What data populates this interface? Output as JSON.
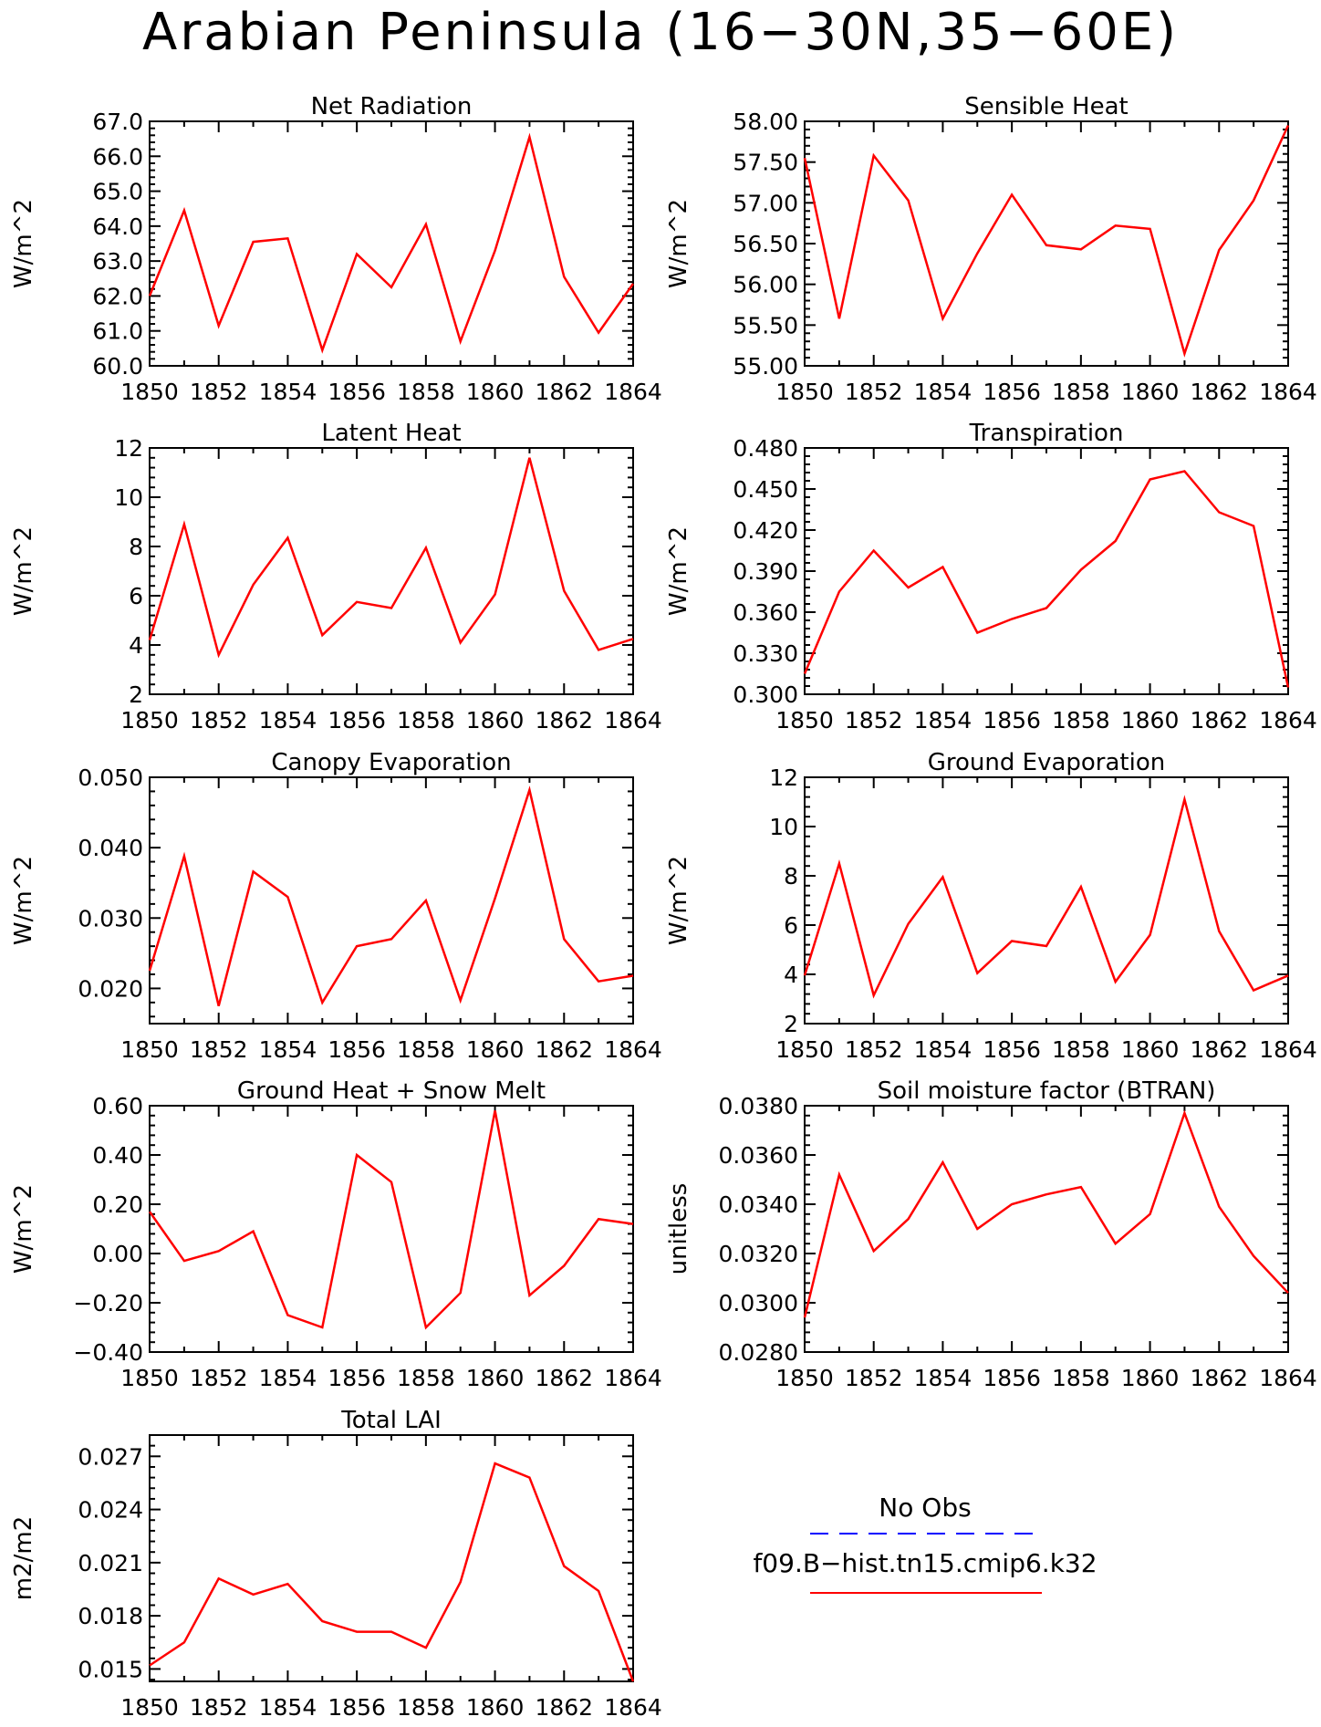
{
  "figure": {
    "title": "Arabian Peninsula (16−30N,35−60E)"
  },
  "colors": {
    "series_red": "#ff0000",
    "obs_blue": "#0000ff",
    "axis": "#000000"
  },
  "legend": {
    "items": [
      {
        "label": "No Obs",
        "color": "#0000ff",
        "style": "dashed"
      },
      {
        "label": "f09.B−hist.tn15.cmip6.k32",
        "color": "#ff0000",
        "style": "solid"
      }
    ]
  },
  "chart_data": [
    {
      "type": "line",
      "title": "Net Radiation",
      "ylabel": "W/m^2",
      "x": [
        1850,
        1851,
        1852,
        1853,
        1854,
        1855,
        1856,
        1857,
        1858,
        1859,
        1860,
        1861,
        1862,
        1863,
        1864
      ],
      "values": [
        62.0,
        64.45,
        61.15,
        63.55,
        63.65,
        60.45,
        63.2,
        62.25,
        64.05,
        60.7,
        63.3,
        66.55,
        62.55,
        60.95,
        62.35
      ],
      "xlim": [
        1850,
        1864
      ],
      "ylim": [
        60.0,
        67.0
      ],
      "xticks": [
        1850,
        1852,
        1854,
        1856,
        1858,
        1860,
        1862,
        1864
      ],
      "xtick_labels": [
        "1850",
        "1852",
        "1854",
        "1856",
        "1858",
        "1860",
        "1862",
        "1864"
      ],
      "yticks": [
        60.0,
        61.0,
        62.0,
        63.0,
        64.0,
        65.0,
        66.0,
        67.0
      ],
      "ytick_labels": [
        "60.0",
        "61.0",
        "62.0",
        "63.0",
        "64.0",
        "65.0",
        "66.0",
        "67.0"
      ],
      "grid": false
    },
    {
      "type": "line",
      "title": "Sensible Heat",
      "ylabel": "W/m^2",
      "x": [
        1850,
        1851,
        1852,
        1853,
        1854,
        1855,
        1856,
        1857,
        1858,
        1859,
        1860,
        1861,
        1862,
        1863,
        1864
      ],
      "values": [
        57.55,
        55.58,
        57.58,
        57.03,
        55.58,
        56.38,
        57.1,
        56.48,
        56.43,
        56.72,
        56.68,
        55.15,
        56.42,
        57.03,
        57.95
      ],
      "xlim": [
        1850,
        1864
      ],
      "ylim": [
        55.0,
        58.0
      ],
      "xticks": [
        1850,
        1852,
        1854,
        1856,
        1858,
        1860,
        1862,
        1864
      ],
      "xtick_labels": [
        "1850",
        "1852",
        "1854",
        "1856",
        "1858",
        "1860",
        "1862",
        "1864"
      ],
      "yticks": [
        55.0,
        55.5,
        56.0,
        56.5,
        57.0,
        57.5,
        58.0
      ],
      "ytick_labels": [
        "55.00",
        "55.50",
        "56.00",
        "56.50",
        "57.00",
        "57.50",
        "58.00"
      ],
      "grid": false
    },
    {
      "type": "line",
      "title": "Latent Heat",
      "ylabel": "W/m^2",
      "x": [
        1850,
        1851,
        1852,
        1853,
        1854,
        1855,
        1856,
        1857,
        1858,
        1859,
        1860,
        1861,
        1862,
        1863,
        1864
      ],
      "values": [
        4.2,
        8.9,
        3.6,
        6.45,
        8.35,
        4.4,
        5.75,
        5.5,
        7.95,
        4.1,
        6.05,
        11.6,
        6.2,
        3.8,
        4.25
      ],
      "xlim": [
        1850,
        1864
      ],
      "ylim": [
        2,
        12
      ],
      "xticks": [
        1850,
        1852,
        1854,
        1856,
        1858,
        1860,
        1862,
        1864
      ],
      "xtick_labels": [
        "1850",
        "1852",
        "1854",
        "1856",
        "1858",
        "1860",
        "1862",
        "1864"
      ],
      "yticks": [
        2,
        4,
        6,
        8,
        10,
        12
      ],
      "ytick_labels": [
        "2",
        "4",
        "6",
        "8",
        "10",
        "12"
      ],
      "grid": false
    },
    {
      "type": "line",
      "title": "Transpiration",
      "ylabel": "W/m^2",
      "x": [
        1850,
        1851,
        1852,
        1853,
        1854,
        1855,
        1856,
        1857,
        1858,
        1859,
        1860,
        1861,
        1862,
        1863,
        1864
      ],
      "values": [
        0.315,
        0.375,
        0.405,
        0.378,
        0.393,
        0.345,
        0.355,
        0.363,
        0.391,
        0.412,
        0.457,
        0.463,
        0.433,
        0.423,
        0.305
      ],
      "xlim": [
        1850,
        1864
      ],
      "ylim": [
        0.3,
        0.48
      ],
      "xticks": [
        1850,
        1852,
        1854,
        1856,
        1858,
        1860,
        1862,
        1864
      ],
      "xtick_labels": [
        "1850",
        "1852",
        "1854",
        "1856",
        "1858",
        "1860",
        "1862",
        "1864"
      ],
      "yticks": [
        0.3,
        0.33,
        0.36,
        0.39,
        0.42,
        0.45,
        0.48
      ],
      "ytick_labels": [
        "0.300",
        "0.330",
        "0.360",
        "0.390",
        "0.420",
        "0.450",
        "0.480"
      ],
      "grid": false
    },
    {
      "type": "line",
      "title": "Canopy Evaporation",
      "ylabel": "W/m^2",
      "x": [
        1850,
        1851,
        1852,
        1853,
        1854,
        1855,
        1856,
        1857,
        1858,
        1859,
        1860,
        1861,
        1862,
        1863,
        1864
      ],
      "values": [
        0.0225,
        0.0388,
        0.0175,
        0.0366,
        0.033,
        0.018,
        0.026,
        0.027,
        0.0325,
        0.0183,
        0.0328,
        0.0482,
        0.027,
        0.021,
        0.0218
      ],
      "xlim": [
        1850,
        1864
      ],
      "ylim": [
        0.015,
        0.05
      ],
      "xticks": [
        1850,
        1852,
        1854,
        1856,
        1858,
        1860,
        1862,
        1864
      ],
      "xtick_labels": [
        "1850",
        "1852",
        "1854",
        "1856",
        "1858",
        "1860",
        "1862",
        "1864"
      ],
      "yticks": [
        0.02,
        0.03,
        0.04,
        0.05
      ],
      "ytick_labels": [
        "0.020",
        "0.030",
        "0.040",
        "0.050"
      ],
      "grid": false
    },
    {
      "type": "line",
      "title": "Ground Evaporation",
      "ylabel": "W/m^2",
      "x": [
        1850,
        1851,
        1852,
        1853,
        1854,
        1855,
        1856,
        1857,
        1858,
        1859,
        1860,
        1861,
        1862,
        1863,
        1864
      ],
      "values": [
        3.95,
        8.5,
        3.15,
        6.05,
        7.95,
        4.05,
        5.35,
        5.15,
        7.55,
        3.7,
        5.6,
        11.1,
        5.75,
        3.35,
        3.95
      ],
      "xlim": [
        1850,
        1864
      ],
      "ylim": [
        2,
        12
      ],
      "xticks": [
        1850,
        1852,
        1854,
        1856,
        1858,
        1860,
        1862,
        1864
      ],
      "xtick_labels": [
        "1850",
        "1852",
        "1854",
        "1856",
        "1858",
        "1860",
        "1862",
        "1864"
      ],
      "yticks": [
        2,
        4,
        6,
        8,
        10,
        12
      ],
      "ytick_labels": [
        "2",
        "4",
        "6",
        "8",
        "10",
        "12"
      ],
      "grid": false
    },
    {
      "type": "line",
      "title": "Ground Heat + Snow Melt",
      "ylabel": "W/m^2",
      "x": [
        1850,
        1851,
        1852,
        1853,
        1854,
        1855,
        1856,
        1857,
        1858,
        1859,
        1860,
        1861,
        1862,
        1863,
        1864
      ],
      "values": [
        0.17,
        -0.03,
        0.01,
        0.09,
        -0.25,
        -0.3,
        0.4,
        0.29,
        -0.3,
        -0.16,
        0.58,
        -0.17,
        -0.05,
        0.14,
        0.12
      ],
      "xlim": [
        1850,
        1864
      ],
      "ylim": [
        -0.4,
        0.6
      ],
      "xticks": [
        1850,
        1852,
        1854,
        1856,
        1858,
        1860,
        1862,
        1864
      ],
      "xtick_labels": [
        "1850",
        "1852",
        "1854",
        "1856",
        "1858",
        "1860",
        "1862",
        "1864"
      ],
      "yticks": [
        -0.4,
        -0.2,
        0.0,
        0.2,
        0.4,
        0.6
      ],
      "ytick_labels": [
        "−0.40",
        "−0.20",
        "0.00",
        "0.20",
        "0.40",
        "0.60"
      ],
      "grid": false
    },
    {
      "type": "line",
      "title": "Soil moisture factor (BTRAN)",
      "ylabel": "unitless",
      "x": [
        1850,
        1851,
        1852,
        1853,
        1854,
        1855,
        1856,
        1857,
        1858,
        1859,
        1860,
        1861,
        1862,
        1863,
        1864
      ],
      "values": [
        0.0294,
        0.0352,
        0.0321,
        0.0334,
        0.0357,
        0.033,
        0.034,
        0.0344,
        0.0347,
        0.0324,
        0.0336,
        0.0377,
        0.0339,
        0.0319,
        0.0304
      ],
      "xlim": [
        1850,
        1864
      ],
      "ylim": [
        0.028,
        0.038
      ],
      "xticks": [
        1850,
        1852,
        1854,
        1856,
        1858,
        1860,
        1862,
        1864
      ],
      "xtick_labels": [
        "1850",
        "1852",
        "1854",
        "1856",
        "1858",
        "1860",
        "1862",
        "1864"
      ],
      "yticks": [
        0.028,
        0.03,
        0.032,
        0.034,
        0.036,
        0.038
      ],
      "ytick_labels": [
        "0.0280",
        "0.0300",
        "0.0320",
        "0.0340",
        "0.0360",
        "0.0380"
      ],
      "grid": false
    },
    {
      "type": "line",
      "title": "Total LAI",
      "ylabel": "m2/m2",
      "x": [
        1850,
        1851,
        1852,
        1853,
        1854,
        1855,
        1856,
        1857,
        1858,
        1859,
        1860,
        1861,
        1862,
        1863,
        1864
      ],
      "values": [
        0.0152,
        0.0165,
        0.0201,
        0.0192,
        0.0198,
        0.0177,
        0.0171,
        0.0171,
        0.0162,
        0.0199,
        0.0266,
        0.0258,
        0.0208,
        0.0194,
        0.0143
      ],
      "xlim": [
        1850,
        1864
      ],
      "ylim": [
        0.0143,
        0.0282
      ],
      "xticks": [
        1850,
        1852,
        1854,
        1856,
        1858,
        1860,
        1862,
        1864
      ],
      "xtick_labels": [
        "1850",
        "1852",
        "1854",
        "1856",
        "1858",
        "1860",
        "1862",
        "1864"
      ],
      "yticks": [
        0.015,
        0.018,
        0.021,
        0.024,
        0.027
      ],
      "ytick_labels": [
        "0.015",
        "0.018",
        "0.021",
        "0.024",
        "0.027"
      ],
      "grid": false
    }
  ]
}
